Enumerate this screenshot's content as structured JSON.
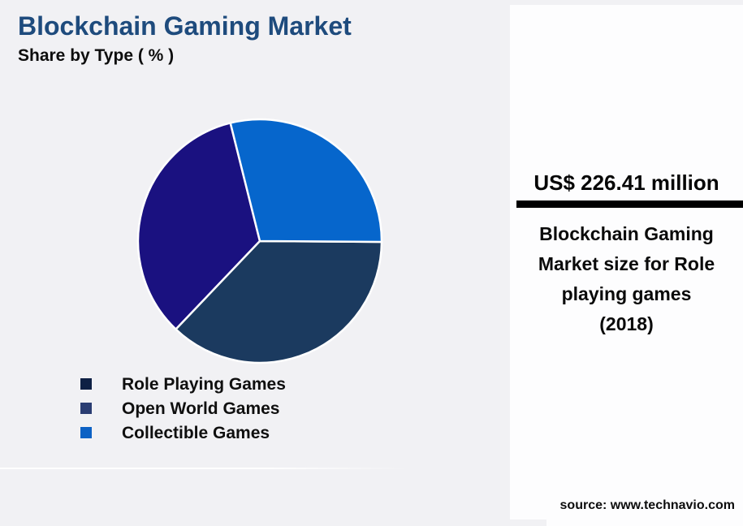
{
  "page": {
    "background": "#f1f1f4"
  },
  "header": {
    "title": "Blockchain Gaming Market",
    "subtitle": "Share by Type ( % )",
    "title_color": "#1e4b7d"
  },
  "chart_data": {
    "type": "pie",
    "title": "Blockchain Gaming Market Share by Type ( % )",
    "unit": "%",
    "series": [
      {
        "name": "Role Playing Games",
        "value": 34,
        "color": "#1a1180"
      },
      {
        "name": "Open World Games",
        "value": 37,
        "color": "#1b3a5f"
      },
      {
        "name": "Collectible Games",
        "value": 29,
        "color": "#0666cc"
      }
    ],
    "start_angle_deg": 104,
    "direction": "counterclockwise-screen",
    "slice_border_color": "#ffffff",
    "legend_position": "bottom-left",
    "legend_marker_colors": [
      "#0e2044",
      "#2a3d72",
      "#0c61c4"
    ]
  },
  "legend": {
    "items": [
      {
        "label": "Role Playing Games",
        "marker_color": "#0e2044"
      },
      {
        "label": "Open World Games",
        "marker_color": "#2a3d72"
      },
      {
        "label": "Collectible Games",
        "marker_color": "#0c61c4"
      }
    ]
  },
  "stat_panel": {
    "value": "US$ 226.41 million",
    "description_lines": [
      "Blockchain Gaming",
      "Market size for Role",
      "playing games",
      "(2018)"
    ],
    "source": "source: www.technavio.com"
  }
}
